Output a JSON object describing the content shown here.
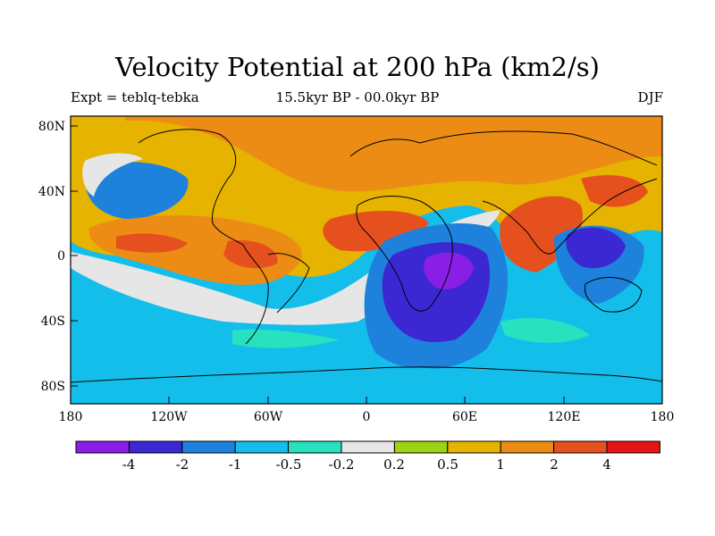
{
  "title": "Velocity Potential at 200 hPa (km2/s)",
  "subtitle_left": "Expt = teblq-tebka",
  "subtitle_center": "15.5kyr BP - 00.0kyr BP",
  "subtitle_right": "DJF",
  "lon_ticks": [
    "180",
    "120W",
    "60W",
    "0",
    "60E",
    "120E",
    "180"
  ],
  "lat_ticks": [
    "80N",
    "40N",
    "0",
    "40S",
    "80S"
  ],
  "colorbar": {
    "colors": [
      "#8a1ee6",
      "#3c28d2",
      "#1e82dc",
      "#14beeb",
      "#28e1be",
      "#e6e6e6",
      "#a0d214",
      "#e6b400",
      "#ec8c14",
      "#e6501e",
      "#e61414"
    ],
    "labels": [
      "-4",
      "-2",
      "-1",
      "-0.5",
      "-0.2",
      "0.2",
      "0.5",
      "1",
      "2",
      "4"
    ]
  }
}
